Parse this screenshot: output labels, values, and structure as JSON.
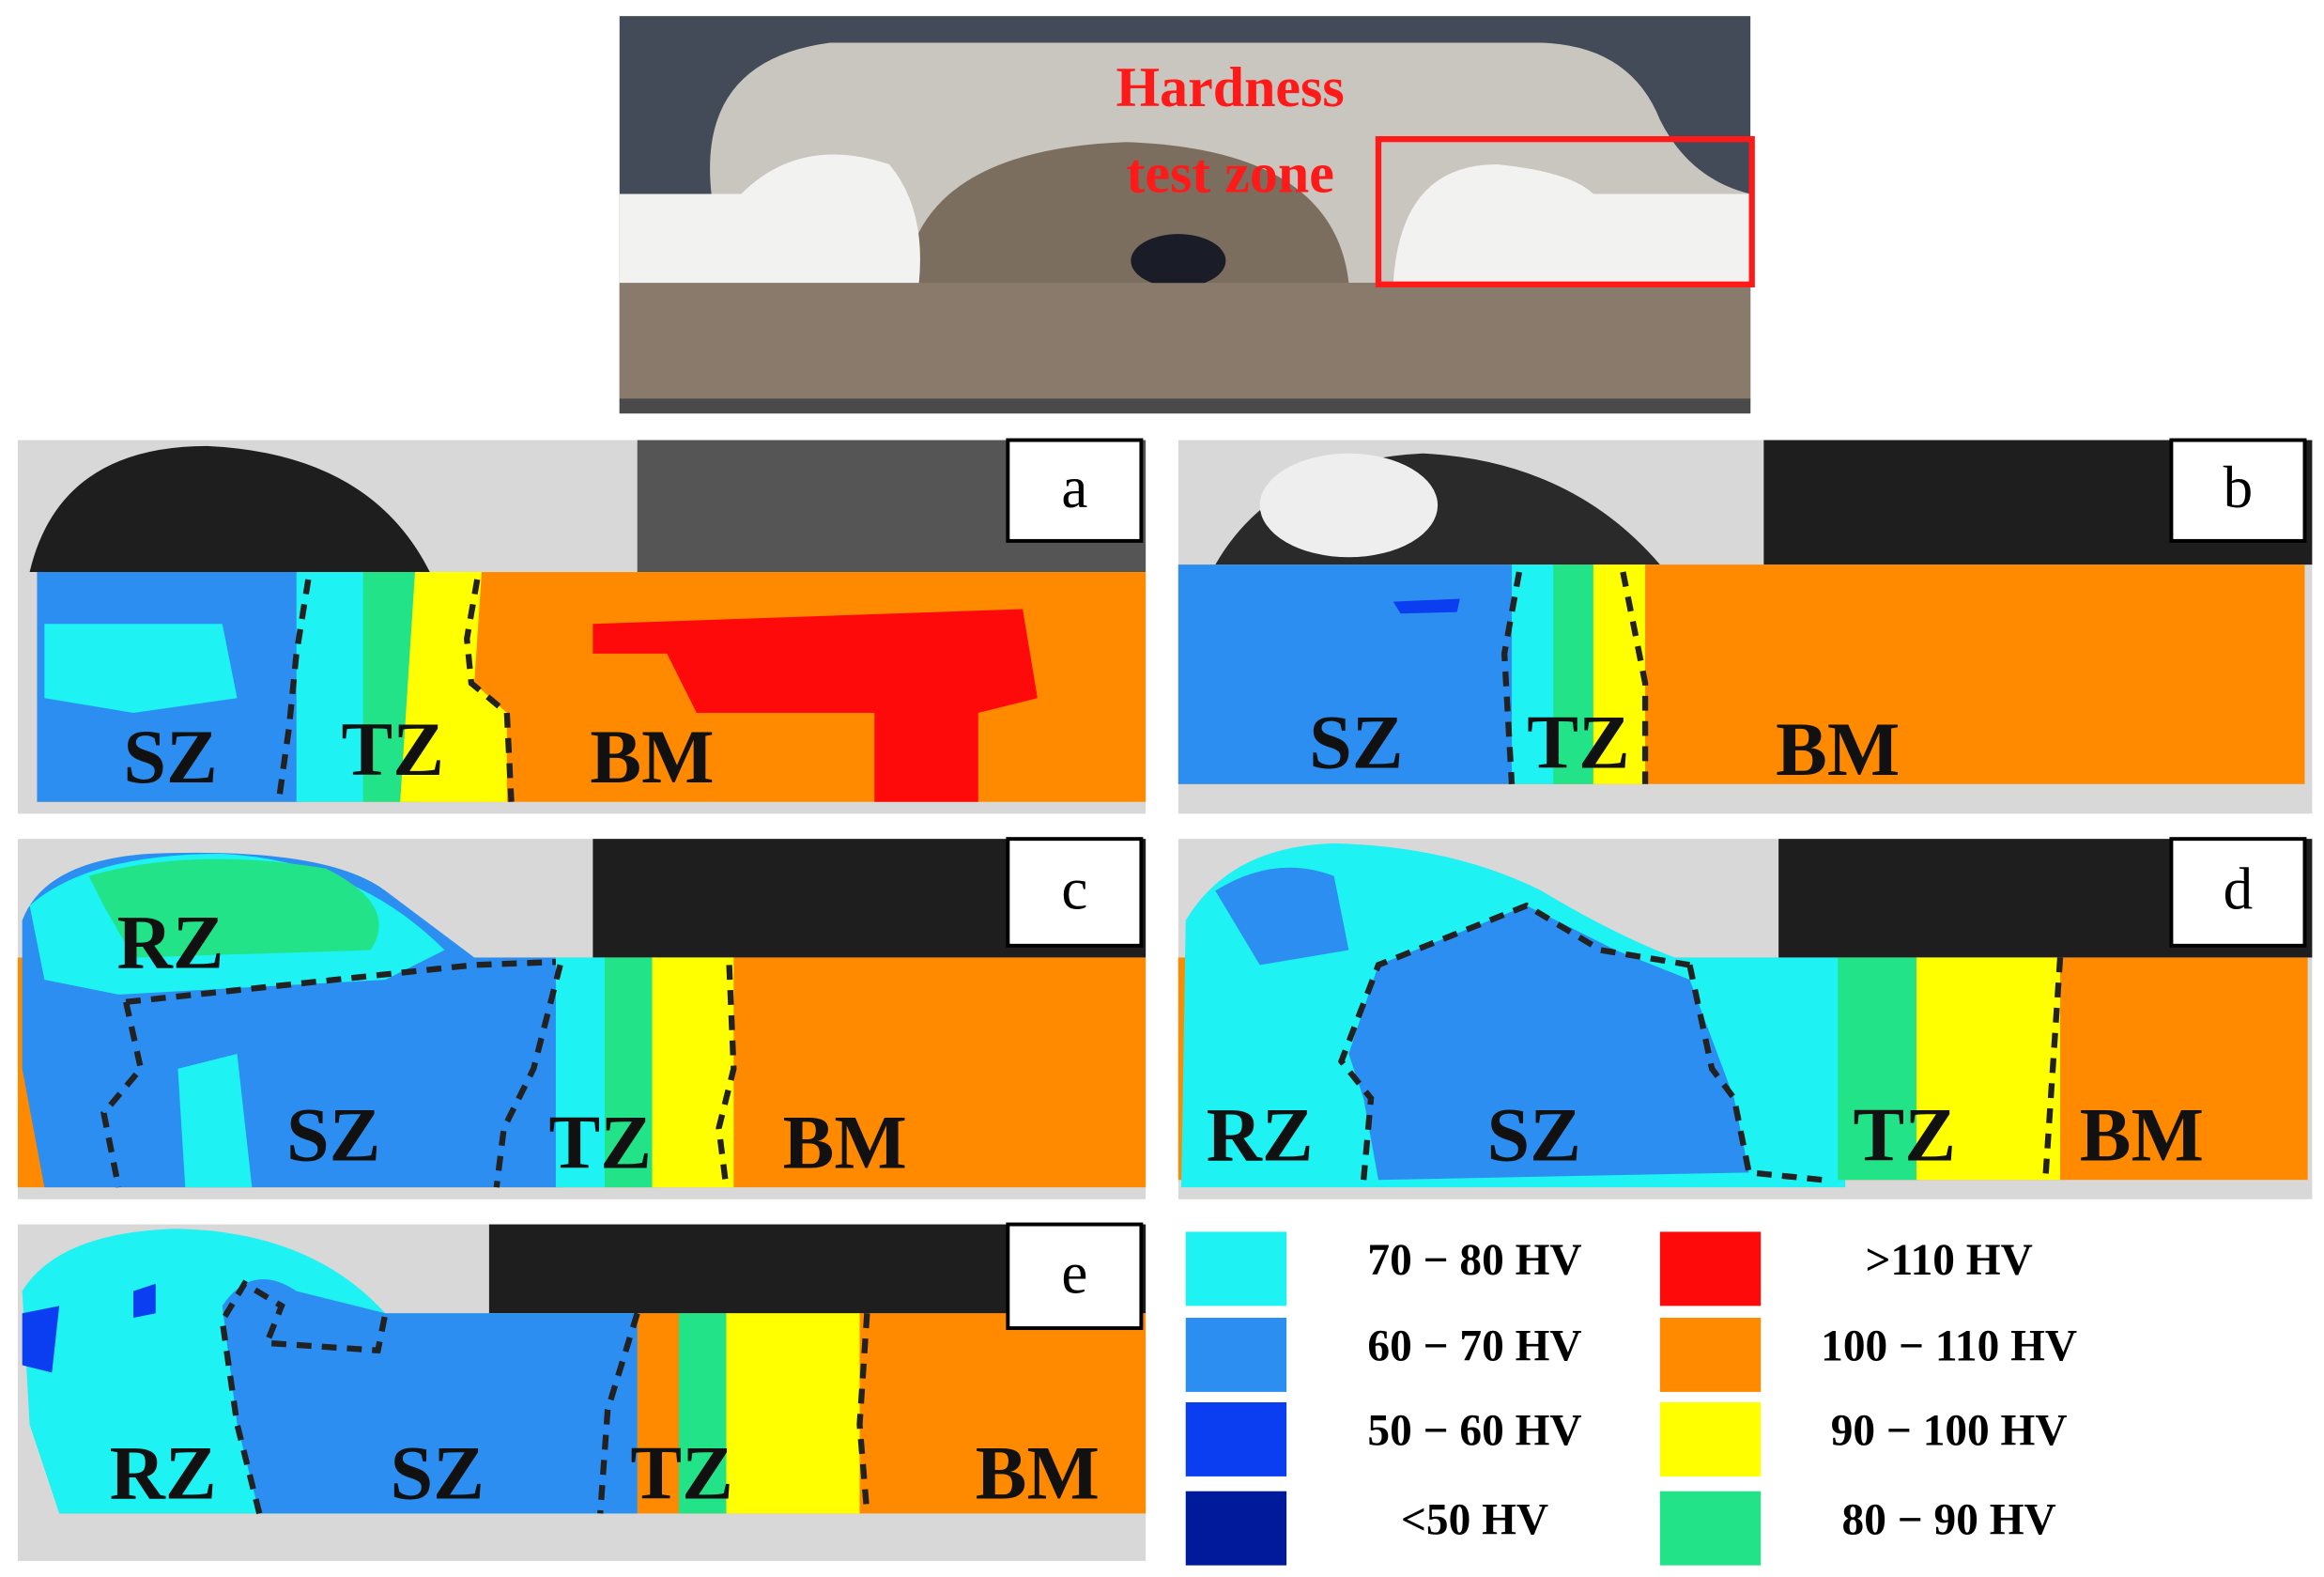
{
  "figure": {
    "annotation": [
      "Hardness",
      "test zone"
    ],
    "panels": [
      {
        "label": "a",
        "zones": [
          "SZ",
          "TZ",
          "BM"
        ]
      },
      {
        "label": "b",
        "zones": [
          "SZ",
          "TZ",
          "BM"
        ]
      },
      {
        "label": "c",
        "zones": [
          "RZ",
          "SZ",
          "TZ",
          "BM"
        ]
      },
      {
        "label": "d",
        "zones": [
          "RZ",
          "SZ",
          "TZ",
          "BM"
        ]
      },
      {
        "label": "e",
        "zones": [
          "RZ",
          "SZ",
          "TZ",
          "BM"
        ]
      }
    ],
    "legend": [
      {
        "label": "70 − 80 HV",
        "color": "#1ef2f2"
      },
      {
        "label": "60 − 70 HV",
        "color": "#2b8ef0"
      },
      {
        "label": "50 − 60 HV",
        "color": "#0a3ef0"
      },
      {
        "label": "<50 HV",
        "color": "#001a9c"
      },
      {
        "label": ">110 HV",
        "color": "#ff0a0a"
      },
      {
        "label": "100 − 110 HV",
        "color": "#ff8a00"
      },
      {
        "label": "90 − 100 HV",
        "color": "#ffff00"
      },
      {
        "label": "80 − 90 HV",
        "color": "#22e388"
      }
    ]
  }
}
